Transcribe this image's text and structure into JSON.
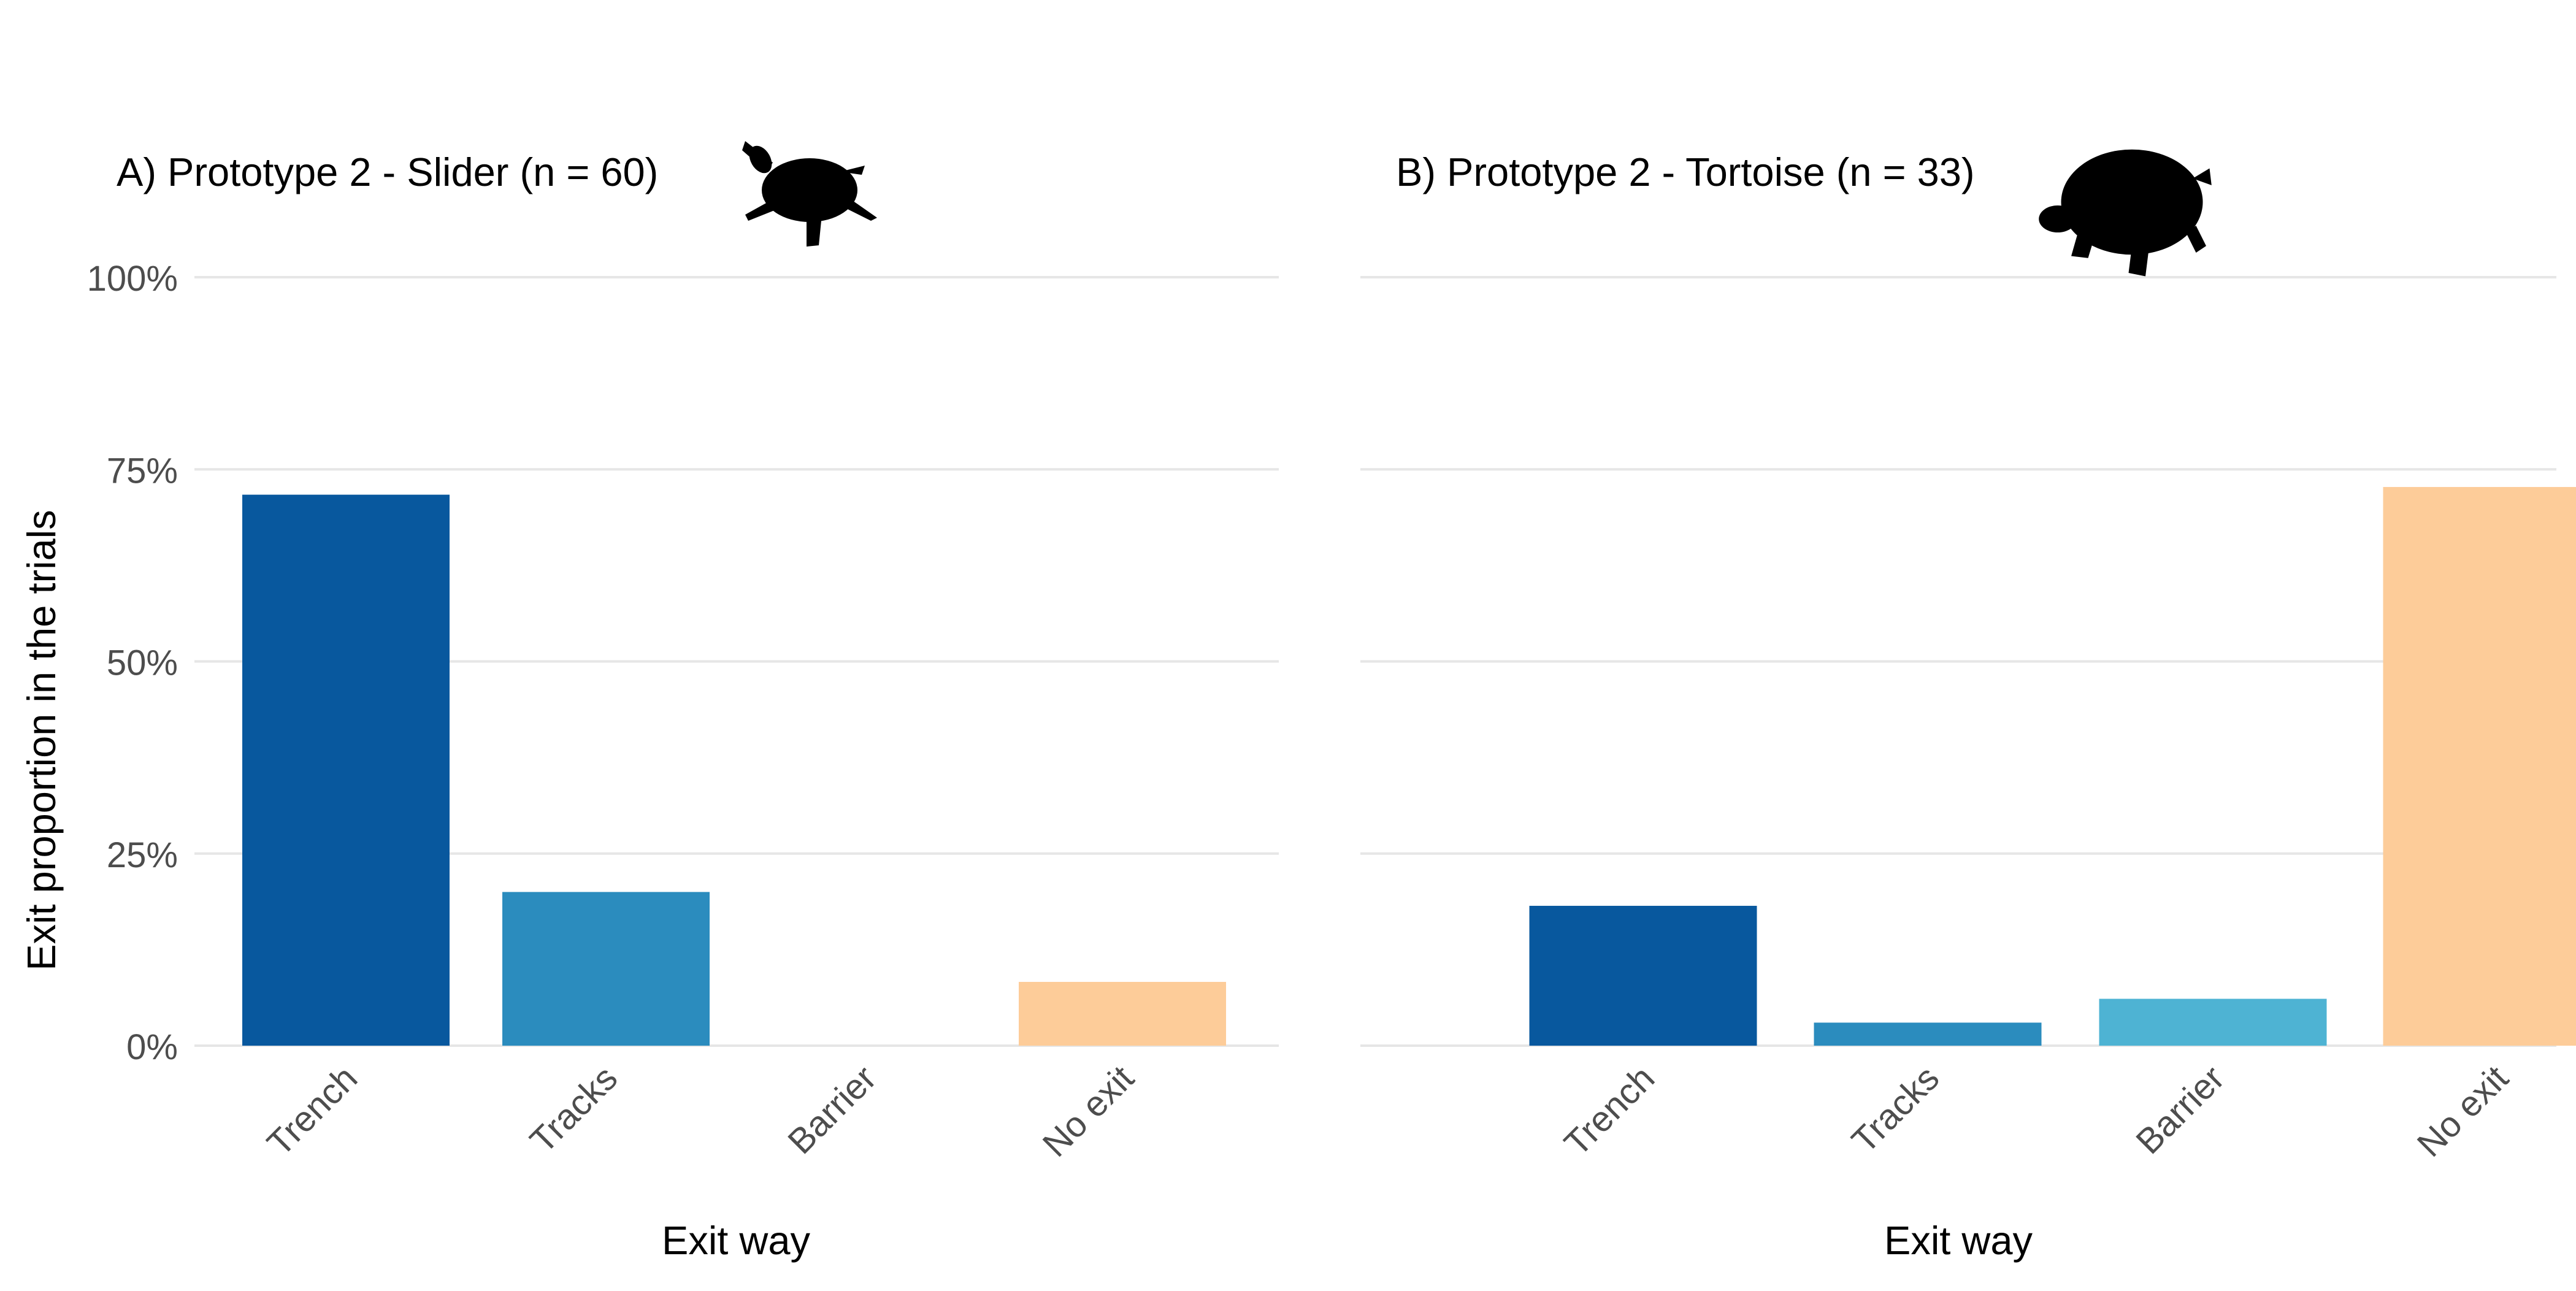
{
  "figure": {
    "ylabel": "Exit proportion in the trials",
    "y_tick_labels": [
      "0%",
      "25%",
      "50%",
      "75%",
      "100%"
    ],
    "colors": {
      "Trench": "#08589e",
      "Tracks": "#2b8cbe",
      "Barrier": "#4eb3d3",
      "No exit": "#fdcc99",
      "grid": "#e6e6e6",
      "tick_text": "#4d4d4d",
      "title_text": "#000000",
      "icon": "#000000"
    }
  },
  "chart_data": [
    {
      "type": "bar",
      "title": "A) Prototype 2 - Slider (n = 60)",
      "icon": "slider-turtle-silhouette-icon",
      "categories": [
        "Trench",
        "Tracks",
        "Barrier",
        "No exit"
      ],
      "values": [
        71.7,
        20.0,
        0.0,
        8.3
      ],
      "xlabel": "Exit way",
      "ylabel": "Exit proportion in the trials",
      "ylim": [
        0,
        100
      ],
      "y_ticks": [
        0,
        25,
        50,
        75,
        100
      ],
      "y_tick_format": "percent",
      "grid": true,
      "legend": "none"
    },
    {
      "type": "bar",
      "title": "B) Prototype 2 - Tortoise (n = 33)",
      "icon": "tortoise-silhouette-icon",
      "categories": [
        "Trench",
        "Tracks",
        "Barrier",
        "No exit"
      ],
      "values": [
        18.2,
        3.0,
        6.1,
        72.7
      ],
      "xlabel": "Exit way",
      "ylabel": "",
      "ylim": [
        0,
        100
      ],
      "y_ticks": [
        0,
        25,
        50,
        75,
        100
      ],
      "y_tick_format": "percent",
      "grid": true,
      "legend": "none"
    }
  ]
}
